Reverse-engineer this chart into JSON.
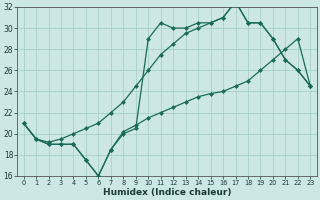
{
  "xlabel": "Humidex (Indice chaleur)",
  "xlim": [
    -0.5,
    23.5
  ],
  "ylim": [
    16,
    32
  ],
  "xticks": [
    0,
    1,
    2,
    3,
    4,
    5,
    6,
    7,
    8,
    9,
    10,
    11,
    12,
    13,
    14,
    15,
    16,
    17,
    18,
    19,
    20,
    21,
    22,
    23
  ],
  "yticks": [
    16,
    18,
    20,
    22,
    24,
    26,
    28,
    30,
    32
  ],
  "background_color": "#cde8e4",
  "grid_color": "#aacfcb",
  "line_color": "#1a6b5a",
  "curve1_x": [
    0,
    1,
    2,
    3,
    4,
    5,
    6,
    7,
    8,
    9,
    10,
    11,
    12,
    13,
    14,
    15,
    16,
    17,
    18,
    19,
    20,
    21,
    22,
    23
  ],
  "curve1_y": [
    21.0,
    19.5,
    19.0,
    19.0,
    19.0,
    17.5,
    16.0,
    18.5,
    20.0,
    20.5,
    29.0,
    30.5,
    30.0,
    30.0,
    30.5,
    30.5,
    31.0,
    32.5,
    30.5,
    30.5,
    29.0,
    27.0,
    26.0,
    24.5
  ],
  "curve2_x": [
    0,
    1,
    2,
    3,
    4,
    5,
    6,
    7,
    8,
    9,
    10,
    11,
    12,
    13,
    14,
    15,
    16,
    17,
    18,
    19,
    20,
    21,
    22,
    23
  ],
  "curve2_y": [
    21.0,
    19.5,
    19.0,
    19.0,
    19.0,
    17.5,
    16.0,
    18.5,
    20.2,
    20.8,
    21.5,
    22.0,
    22.5,
    23.0,
    23.5,
    23.8,
    24.0,
    24.5,
    25.0,
    26.0,
    27.0,
    28.0,
    29.0,
    24.5
  ],
  "curve3_x": [
    0,
    1,
    2,
    3,
    4,
    5,
    6,
    7,
    8,
    9,
    10,
    11,
    12,
    13,
    14,
    15,
    16,
    17,
    18,
    19,
    20,
    21,
    22,
    23
  ],
  "curve3_y": [
    21.0,
    19.5,
    19.2,
    19.5,
    20.0,
    20.5,
    21.0,
    22.0,
    23.0,
    24.5,
    26.0,
    27.5,
    28.5,
    29.5,
    30.0,
    30.5,
    31.0,
    32.5,
    30.5,
    30.5,
    29.0,
    27.0,
    26.0,
    24.5
  ]
}
